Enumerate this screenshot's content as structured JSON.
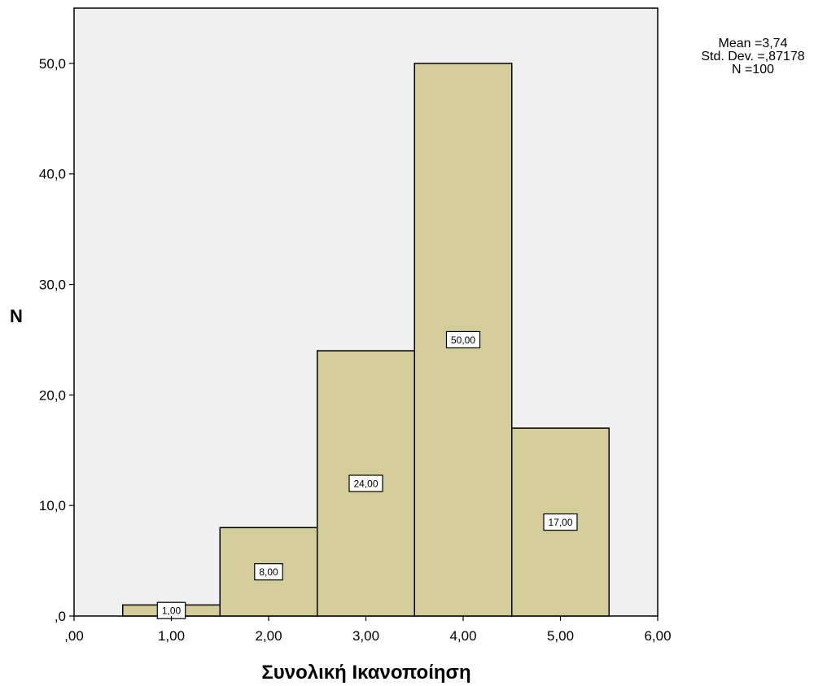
{
  "chart_data": {
    "type": "bar",
    "title": "",
    "xlabel": "Συνολική Ικανοποίηση",
    "ylabel": "N",
    "categories": [
      "1,00",
      "2,00",
      "3,00",
      "4,00",
      "5,00"
    ],
    "x": [
      1,
      2,
      3,
      4,
      5
    ],
    "values": [
      1,
      8,
      24,
      50,
      17
    ],
    "value_labels": [
      "1,00",
      "8,00",
      "24,00",
      "50,00",
      "17,00"
    ],
    "xlim": [
      0,
      6
    ],
    "ylim": [
      0,
      55
    ],
    "x_ticks": [
      0,
      1,
      2,
      3,
      4,
      5,
      6
    ],
    "x_tick_labels": [
      ",00",
      "1,00",
      "2,00",
      "3,00",
      "4,00",
      "5,00",
      "6,00"
    ],
    "y_ticks": [
      0,
      10,
      20,
      30,
      40,
      50
    ],
    "y_tick_labels": [
      ",0",
      "10,0",
      "20,0",
      "30,0",
      "40,0",
      "50,0"
    ],
    "grid": false,
    "colors": {
      "bar_fill": "#d3ce99",
      "plot_background": "#f0f0f0",
      "outline": "#000000"
    }
  },
  "stats": {
    "mean": "Mean =3,74",
    "std_dev": "Std. Dev. =,87178",
    "n": "N =100"
  }
}
